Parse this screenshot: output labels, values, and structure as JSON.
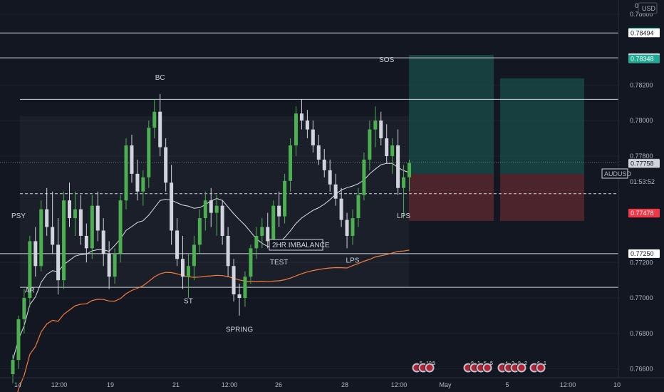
{
  "chart_data": {
    "type": "candlestick",
    "symbol": "AUDUSD",
    "currency": "USD",
    "countdown": "01:53:52",
    "ylim": [
      0.7655,
      0.7868
    ],
    "y_ticks": [
      {
        "v": 0.786,
        "t": "0.78600"
      },
      {
        "v": 0.782,
        "t": "0.78200"
      },
      {
        "v": 0.78,
        "t": "0.78000"
      },
      {
        "v": 0.778,
        "t": "0.77800"
      },
      {
        "v": 0.772,
        "t": "0.77200"
      },
      {
        "v": 0.77,
        "t": "0.77000"
      },
      {
        "v": 0.768,
        "t": "0.76800"
      },
      {
        "v": 0.766,
        "t": "0.76600"
      }
    ],
    "top_axis_label": "0.",
    "x_ticks": [
      "14",
      "12:00",
      "19",
      "21",
      "12:00",
      "26",
      "28",
      "12:00",
      "May",
      "5",
      "12:00",
      "10"
    ],
    "price_tags": [
      {
        "v": 0.78499,
        "t": "0.78499",
        "color": "#22ab94"
      },
      {
        "v": 0.78494,
        "t": "0.78494",
        "color": "#ffffff"
      },
      {
        "v": 0.78354,
        "t": "0.78354",
        "color": "#ffffff"
      },
      {
        "v": 0.78348,
        "t": "0.78348",
        "color": "#22ab94"
      },
      {
        "v": 0.77762,
        "t": "0.77762",
        "color": "#ffffff",
        "bordered": true
      },
      {
        "v": 0.77759,
        "t": "0.77759",
        "color": "#787b86"
      },
      {
        "v": 0.77758,
        "t": "0.77758",
        "color": "#d1d4dc"
      },
      {
        "v": 0.77479,
        "t": "0.77479",
        "color": "#f23645"
      },
      {
        "v": 0.77478,
        "t": "0.77478",
        "color": "#f23645"
      },
      {
        "v": 0.7725,
        "t": "0.77250",
        "color": "#ffffff"
      }
    ],
    "levels": [
      {
        "name": "resistance-top",
        "v": 0.78494
      },
      {
        "name": "resistance-2",
        "v": 0.78354
      },
      {
        "name": "range-high",
        "v": 0.7812
      },
      {
        "name": "range-low",
        "v": 0.7706
      },
      {
        "name": "support",
        "v": 0.7725
      }
    ],
    "annotations": [
      {
        "t": "PSY",
        "v": 0.7745,
        "i": 1
      },
      {
        "t": "AR",
        "v": 0.7703,
        "i": 3
      },
      {
        "t": "BC",
        "v": 0.7823,
        "i": 26
      },
      {
        "t": "ST",
        "v": 0.7697,
        "i": 31
      },
      {
        "t": "SPRING",
        "v": 0.7681,
        "i": 40
      },
      {
        "t": "TEST",
        "v": 0.7719,
        "i": 47
      },
      {
        "t": "LPS",
        "v": 0.772,
        "i": 60
      },
      {
        "t": "SOS",
        "v": 0.7833,
        "i": 66
      },
      {
        "t": "LPS",
        "v": 0.7745,
        "i": 69
      }
    ],
    "imbalance_label": "2HR IMBALANCE",
    "candles": [
      [
        0.7657,
        0.7668,
        0.7652,
        0.7665
      ],
      [
        0.7665,
        0.769,
        0.766,
        0.7688
      ],
      [
        0.7688,
        0.7705,
        0.768,
        0.77
      ],
      [
        0.77,
        0.7735,
        0.7695,
        0.7732
      ],
      [
        0.7732,
        0.774,
        0.7712,
        0.7718
      ],
      [
        0.7718,
        0.7755,
        0.7715,
        0.775
      ],
      [
        0.775,
        0.7762,
        0.7735,
        0.774
      ],
      [
        0.774,
        0.776,
        0.7725,
        0.773
      ],
      [
        0.773,
        0.7745,
        0.7702,
        0.771
      ],
      [
        0.771,
        0.776,
        0.7705,
        0.7755
      ],
      [
        0.7755,
        0.7765,
        0.774,
        0.7745
      ],
      [
        0.7745,
        0.776,
        0.7735,
        0.775
      ],
      [
        0.775,
        0.7758,
        0.773,
        0.7735
      ],
      [
        0.7735,
        0.7742,
        0.772,
        0.7728
      ],
      [
        0.7728,
        0.7758,
        0.7722,
        0.7752
      ],
      [
        0.7752,
        0.776,
        0.7732,
        0.7738
      ],
      [
        0.7738,
        0.7745,
        0.7718,
        0.7725
      ],
      [
        0.7725,
        0.7732,
        0.7705,
        0.7712
      ],
      [
        0.7712,
        0.7728,
        0.7708,
        0.7725
      ],
      [
        0.7725,
        0.7758,
        0.772,
        0.7755
      ],
      [
        0.7755,
        0.779,
        0.775,
        0.7786
      ],
      [
        0.7786,
        0.7792,
        0.7765,
        0.777
      ],
      [
        0.777,
        0.7778,
        0.7755,
        0.776
      ],
      [
        0.776,
        0.7772,
        0.7752,
        0.7768
      ],
      [
        0.7768,
        0.78,
        0.7762,
        0.7796
      ],
      [
        0.7796,
        0.7812,
        0.779,
        0.7805
      ],
      [
        0.7805,
        0.7815,
        0.778,
        0.7785
      ],
      [
        0.7785,
        0.779,
        0.776,
        0.7765
      ],
      [
        0.7765,
        0.7775,
        0.773,
        0.7738
      ],
      [
        0.7738,
        0.7745,
        0.7718,
        0.7722
      ],
      [
        0.7722,
        0.7735,
        0.7705,
        0.7712
      ],
      [
        0.7712,
        0.7725,
        0.77,
        0.7718
      ],
      [
        0.7718,
        0.7735,
        0.771,
        0.773
      ],
      [
        0.773,
        0.775,
        0.7725,
        0.7745
      ],
      [
        0.7745,
        0.776,
        0.7738,
        0.7755
      ],
      [
        0.7755,
        0.7762,
        0.774,
        0.7748
      ],
      [
        0.7748,
        0.7758,
        0.7735,
        0.7752
      ],
      [
        0.7752,
        0.7755,
        0.773,
        0.7735
      ],
      [
        0.7735,
        0.774,
        0.7712,
        0.7718
      ],
      [
        0.7718,
        0.7722,
        0.7698,
        0.7702
      ],
      [
        0.7702,
        0.7708,
        0.769,
        0.77
      ],
      [
        0.77,
        0.7715,
        0.7695,
        0.7712
      ],
      [
        0.7712,
        0.773,
        0.7708,
        0.7728
      ],
      [
        0.7728,
        0.774,
        0.7722,
        0.7735
      ],
      [
        0.7735,
        0.7745,
        0.7728,
        0.774
      ],
      [
        0.774,
        0.7748,
        0.7728,
        0.7732
      ],
      [
        0.7732,
        0.7755,
        0.7728,
        0.7752
      ],
      [
        0.7752,
        0.776,
        0.774,
        0.7746
      ],
      [
        0.7746,
        0.777,
        0.7742,
        0.7766
      ],
      [
        0.7766,
        0.779,
        0.776,
        0.7786
      ],
      [
        0.7786,
        0.7808,
        0.778,
        0.7804
      ],
      [
        0.7804,
        0.7812,
        0.7795,
        0.78
      ],
      [
        0.78,
        0.7806,
        0.779,
        0.7795
      ],
      [
        0.7795,
        0.78,
        0.7782,
        0.7786
      ],
      [
        0.7786,
        0.7792,
        0.7775,
        0.7778
      ],
      [
        0.7778,
        0.7784,
        0.7768,
        0.7772
      ],
      [
        0.7772,
        0.7778,
        0.776,
        0.7764
      ],
      [
        0.7764,
        0.777,
        0.7752,
        0.7756
      ],
      [
        0.7756,
        0.7762,
        0.774,
        0.7744
      ],
      [
        0.7744,
        0.7748,
        0.7728,
        0.7735
      ],
      [
        0.7735,
        0.775,
        0.773,
        0.7745
      ],
      [
        0.7745,
        0.7762,
        0.774,
        0.7758
      ],
      [
        0.7758,
        0.7782,
        0.7755,
        0.7778
      ],
      [
        0.7778,
        0.78,
        0.7772,
        0.7795
      ],
      [
        0.7795,
        0.7808,
        0.7785,
        0.78
      ],
      [
        0.78,
        0.7805,
        0.7786,
        0.779
      ],
      [
        0.779,
        0.7798,
        0.7776,
        0.778
      ],
      [
        0.778,
        0.779,
        0.777,
        0.7786
      ],
      [
        0.7786,
        0.7795,
        0.7758,
        0.7762
      ],
      [
        0.7762,
        0.7775,
        0.7745,
        0.7768
      ],
      [
        0.7768,
        0.7778,
        0.776,
        0.7776
      ]
    ]
  },
  "events": {
    "group1": {
      "items": [
        "5",
        "10",
        "5"
      ]
    },
    "group2": {
      "items": [
        "8",
        "1",
        "5",
        "5"
      ]
    },
    "group3": {
      "items": [
        "4",
        "3",
        "8",
        "2"
      ]
    },
    "group4": {
      "items": [
        "6",
        "1"
      ]
    }
  }
}
